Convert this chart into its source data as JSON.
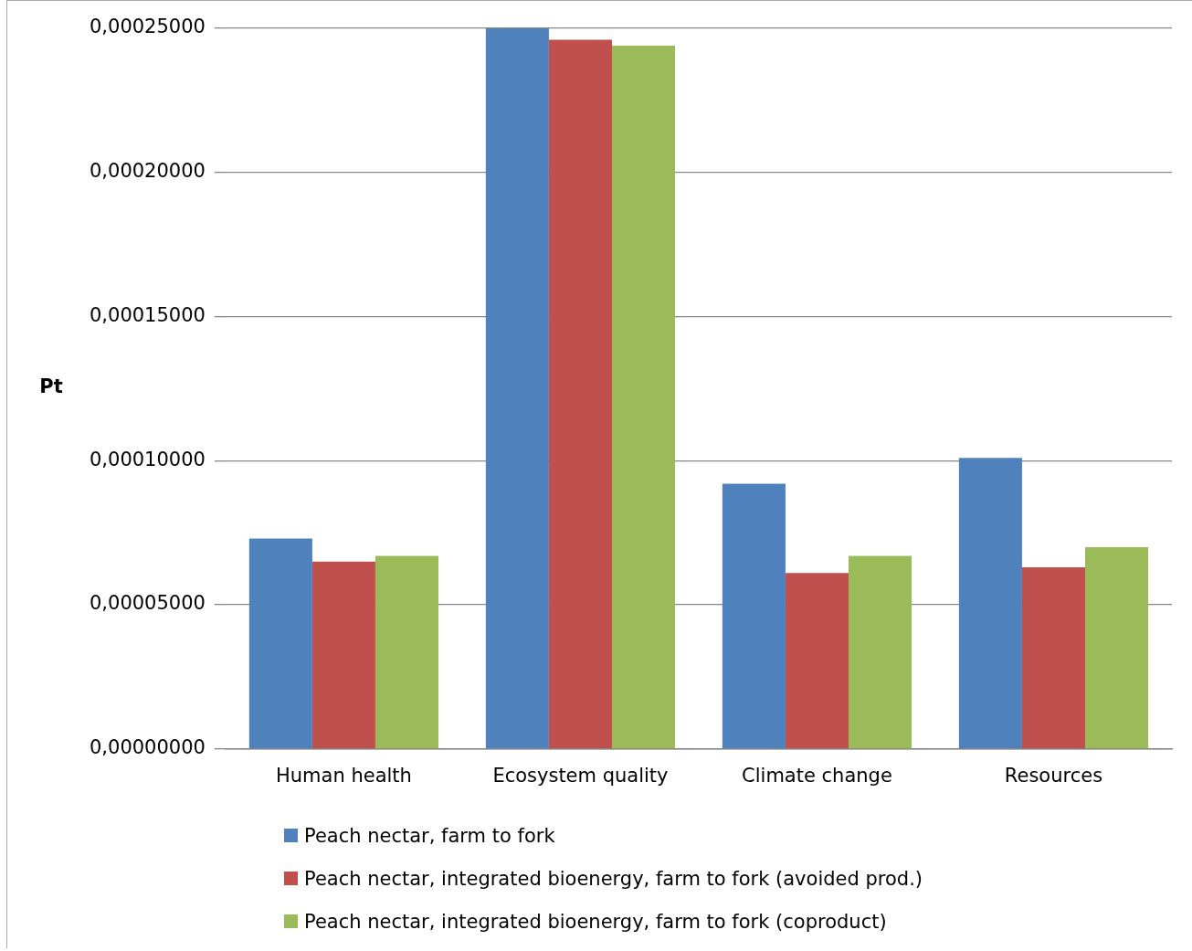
{
  "chart_data": {
    "type": "bar",
    "ylabel": "Pt",
    "categories": [
      "Human health",
      "Ecosystem quality",
      "Climate change",
      "Resources"
    ],
    "series": [
      {
        "name": "Peach nectar, farm to fork",
        "color": "#4f81bd",
        "values": [
          7.3e-05,
          0.00025,
          9.2e-05,
          0.000101
        ]
      },
      {
        "name": "Peach nectar, integrated bioenergy, farm to fork (avoided prod.)",
        "color": "#c0504d",
        "values": [
          6.5e-05,
          0.000246,
          6.1e-05,
          6.3e-05
        ]
      },
      {
        "name": "Peach nectar, integrated bioenergy, farm to fork (coproduct)",
        "color": "#9bbb59",
        "values": [
          6.7e-05,
          0.000244,
          6.7e-05,
          7e-05
        ]
      }
    ],
    "ylim": [
      0,
      0.00025
    ],
    "yticks": [
      {
        "value": 0,
        "label": "0,00000000"
      },
      {
        "value": 5e-05,
        "label": "0,00005000"
      },
      {
        "value": 0.0001,
        "label": "0,00010000"
      },
      {
        "value": 0.00015,
        "label": "0,00015000"
      },
      {
        "value": 0.0002,
        "label": "0,00020000"
      },
      {
        "value": 0.00025,
        "label": "0,00025000"
      }
    ],
    "grid": "y",
    "legend": "bottom"
  }
}
